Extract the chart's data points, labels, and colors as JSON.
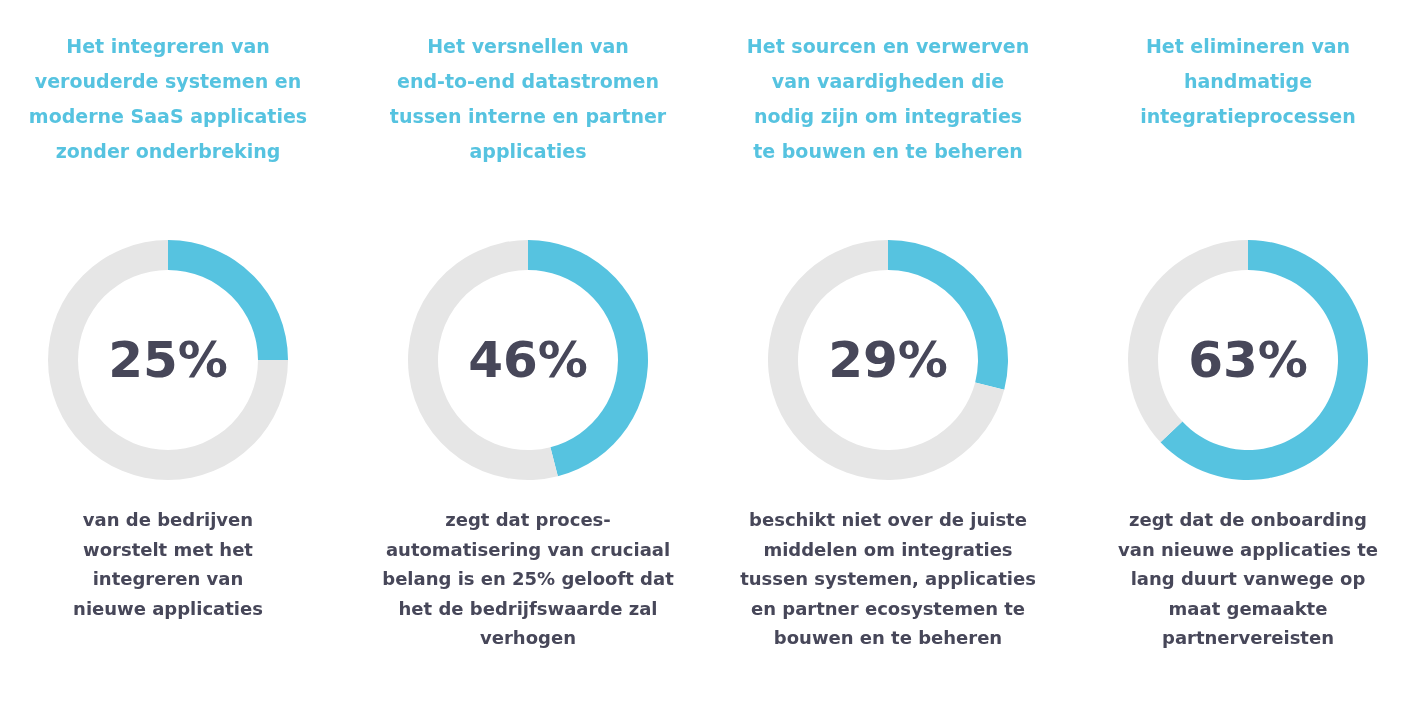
{
  "chart_data": [
    {
      "type": "donut",
      "title": "Het integreren van\nverouderde systemen en\nmoderne SaaS applicaties\nzonder onderbreking",
      "categories": [
        null,
        null
      ],
      "values": [
        25,
        75
      ],
      "colors": [
        "#56c3e0",
        "#e6e6e6"
      ],
      "annotations": [
        "25%",
        "van de bedrijven\nworstelt met het\nintegreren van\nnieuwe applicaties"
      ]
    },
    {
      "type": "donut",
      "title": "Het versnellen van\nend-to-end datastromen\ntussen interne en partner\napplicaties",
      "categories": [
        null,
        null
      ],
      "values": [
        46,
        54
      ],
      "colors": [
        "#56c3e0",
        "#e6e6e6"
      ],
      "annotations": [
        "46%",
        "zegt dat proces-\nautomatisering van cruciaal\nbelang is en 25% gelooft dat\nhet de bedrijfswaarde zal\nverhogen"
      ]
    },
    {
      "type": "donut",
      "title": "Het sourcen en verwerven\nvan vaardigheden die\nnodig zijn om integraties\nte bouwen en te beheren",
      "categories": [
        null,
        null
      ],
      "values": [
        29,
        71
      ],
      "colors": [
        "#56c3e0",
        "#e6e6e6"
      ],
      "annotations": [
        "29%",
        "beschikt niet over de juiste\nmiddelen om integraties\ntussen systemen, applicaties\nen partner ecosystemen te\nbouwen en te beheren"
      ]
    },
    {
      "type": "donut",
      "title": "Het elimineren van\nhandmatige\nintegratieprocessen",
      "categories": [
        null,
        null
      ],
      "values": [
        63,
        37
      ],
      "colors": [
        "#56c3e0",
        "#e6e6e6"
      ],
      "annotations": [
        "63%",
        "zegt dat de onboarding\nvan nieuwe applicaties te\nlang duurt vanwege op\nmaat gemaakte\npartnervereisten"
      ]
    }
  ]
}
